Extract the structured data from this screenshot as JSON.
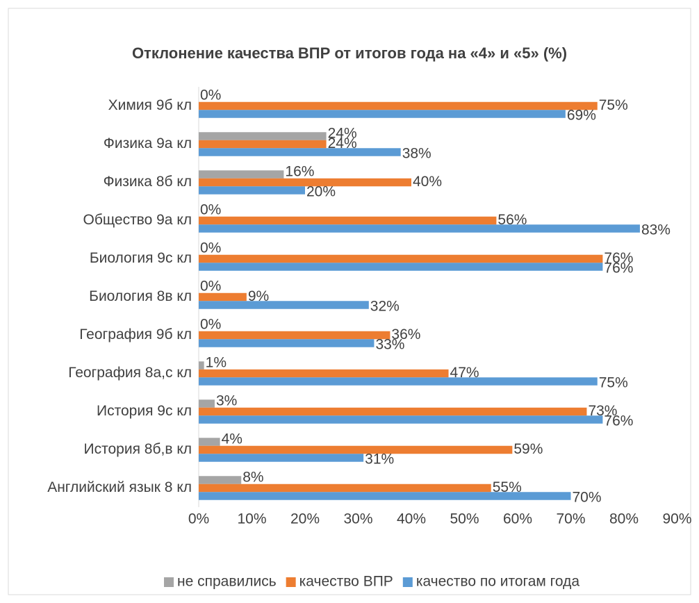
{
  "chart_data": {
    "type": "hbar",
    "title": "Отклонение качества ВПР от итогов года на «4» и «5» (%)",
    "categories": [
      "Химия 9б кл",
      "Физика 9а кл",
      "Физика 8б кл",
      "Общество 9а кл",
      "Биология 9с кл",
      "Биология 8в кл",
      "География 9б  кл",
      "География 8а,с кл",
      "История 9с кл",
      "История 8б,в кл",
      "Английский язык 8 кл"
    ],
    "series": [
      {
        "name": "не справились",
        "color": "#a5a5a5",
        "values": [
          0,
          24,
          16,
          0,
          0,
          0,
          0,
          1,
          3,
          4,
          8
        ],
        "value_labels": [
          "0%",
          "24%",
          "16%",
          "0%",
          "0%",
          "0%",
          "0%",
          "1%",
          "3%",
          "4%",
          "8%"
        ]
      },
      {
        "name": "качество ВПР",
        "color": "#ed7d31",
        "values": [
          75,
          24,
          40,
          56,
          76,
          9,
          36,
          47,
          73,
          59,
          55
        ],
        "value_labels": [
          "75%",
          "24%",
          "40%",
          "56%",
          "76%",
          "9%",
          "36%",
          "47%",
          "73%",
          "59%",
          "55%"
        ]
      },
      {
        "name": "качество по итогам года",
        "color": "#5b9bd5",
        "values": [
          69,
          38,
          20,
          83,
          76,
          32,
          33,
          75,
          76,
          31,
          70
        ],
        "value_labels": [
          "69%",
          "38%",
          "20%",
          "83%",
          "76%",
          "32%",
          "33%",
          "75%",
          "76%",
          "31%",
          "70%"
        ]
      }
    ],
    "xlim": [
      0,
      90
    ],
    "xticks": [
      {
        "value": 0,
        "label": "0%"
      },
      {
        "value": 10,
        "label": "10%"
      },
      {
        "value": 20,
        "label": "20%"
      },
      {
        "value": 30,
        "label": "30%"
      },
      {
        "value": 40,
        "label": "40%"
      },
      {
        "value": 50,
        "label": "50%"
      },
      {
        "value": 60,
        "label": "60%"
      },
      {
        "value": 70,
        "label": "70%"
      },
      {
        "value": 80,
        "label": "80%"
      },
      {
        "value": 90,
        "label": "90%"
      }
    ],
    "legend": "bottom"
  }
}
